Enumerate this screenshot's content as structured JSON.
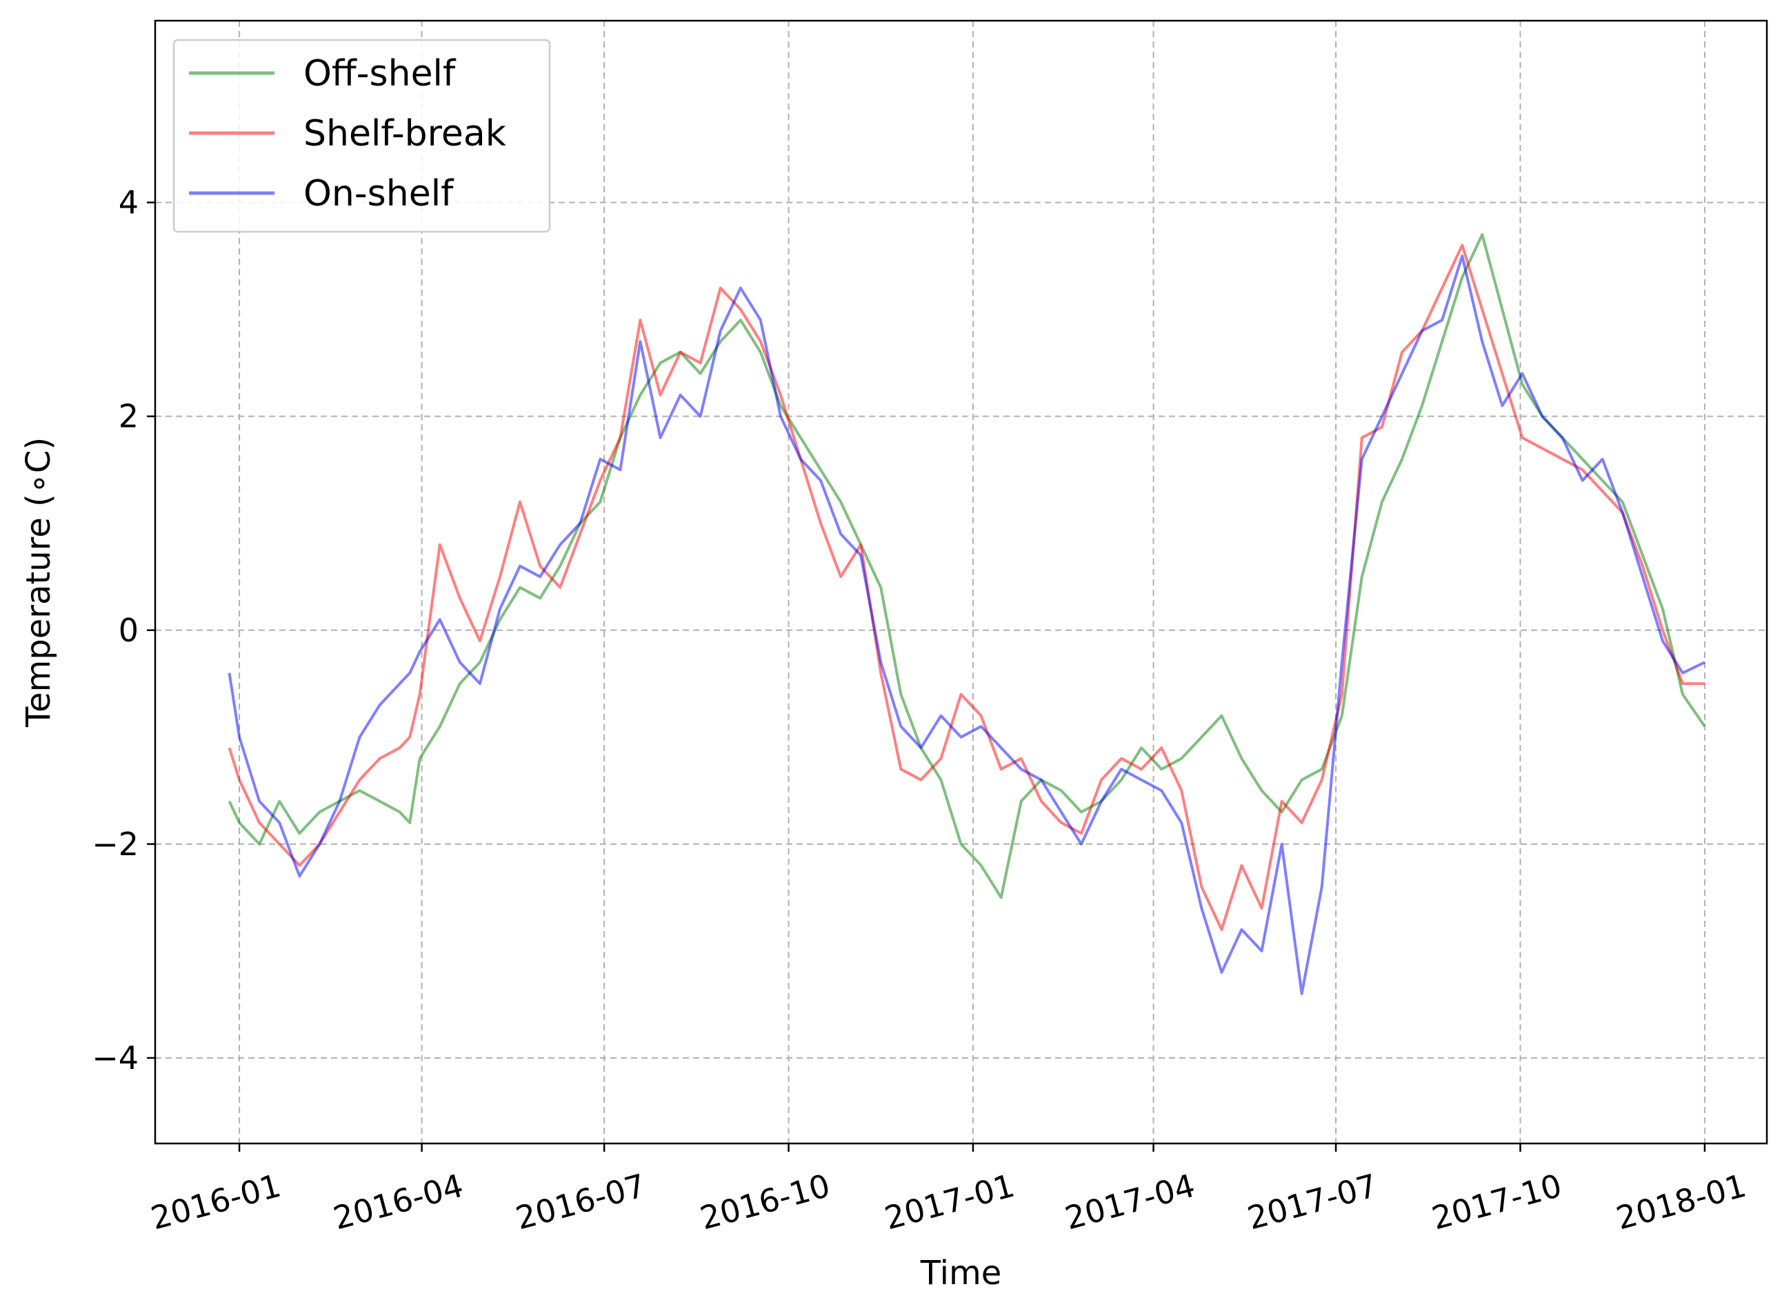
{
  "chart_data": {
    "type": "line",
    "title": "",
    "xlabel": "Time",
    "ylabel": "Temperature (∘C)",
    "x_tick_labels": [
      "2016-01",
      "2016-04",
      "2016-07",
      "2016-10",
      "2017-01",
      "2017-04",
      "2017-07",
      "2017-10",
      "2018-01"
    ],
    "x_tick_days": [
      0,
      91,
      182,
      274,
      366,
      456,
      547,
      639,
      731
    ],
    "y_ticks": [
      4,
      2,
      0,
      -2,
      -4
    ],
    "y_tick_labels": [
      "4",
      "2",
      "0",
      "−2",
      "−4"
    ],
    "xlim_days": [
      -42,
      762
    ],
    "ylim": [
      -4.8,
      5.7
    ],
    "x_unit": "days since 2016-01-01",
    "grid": true,
    "legend_position": "top-left",
    "series": [
      {
        "name": "Off-shelf",
        "color": "#008000",
        "x": [
          -5,
          0,
          10,
          20,
          30,
          40,
          50,
          60,
          70,
          80,
          85,
          90,
          100,
          110,
          120,
          130,
          140,
          150,
          160,
          170,
          180,
          190,
          200,
          210,
          220,
          230,
          240,
          250,
          260,
          270,
          280,
          290,
          300,
          310,
          320,
          330,
          340,
          350,
          360,
          370,
          380,
          390,
          400,
          410,
          420,
          430,
          440,
          450,
          460,
          470,
          480,
          490,
          500,
          510,
          520,
          530,
          540,
          550,
          560,
          570,
          580,
          590,
          600,
          610,
          620,
          630,
          640,
          650,
          660,
          670,
          680,
          690,
          700,
          710,
          720,
          731
        ],
        "y": [
          -1.6,
          -1.8,
          -2.0,
          -1.6,
          -1.9,
          -1.7,
          -1.6,
          -1.5,
          -1.6,
          -1.7,
          -1.8,
          -1.2,
          -0.9,
          -0.5,
          -0.3,
          0.1,
          0.4,
          0.3,
          0.6,
          1.0,
          1.2,
          1.8,
          2.2,
          2.5,
          2.6,
          2.4,
          2.7,
          2.9,
          2.6,
          2.1,
          1.8,
          1.5,
          1.2,
          0.8,
          0.4,
          -0.6,
          -1.1,
          -1.4,
          -2.0,
          -2.2,
          -2.5,
          -1.6,
          -1.4,
          -1.5,
          -1.7,
          -1.6,
          -1.4,
          -1.1,
          -1.3,
          -1.2,
          -1.0,
          -0.8,
          -1.2,
          -1.5,
          -1.7,
          -1.4,
          -1.3,
          -0.8,
          0.5,
          1.2,
          1.6,
          2.1,
          2.7,
          3.3,
          3.7,
          3.0,
          2.3,
          2.0,
          1.8,
          1.6,
          1.4,
          1.2,
          0.7,
          0.2,
          -0.6,
          -0.9
        ]
      },
      {
        "name": "Shelf-break",
        "color": "#ff0000",
        "x": [
          -5,
          0,
          10,
          20,
          30,
          40,
          50,
          60,
          70,
          80,
          85,
          90,
          100,
          110,
          120,
          130,
          140,
          150,
          160,
          170,
          180,
          190,
          200,
          210,
          220,
          230,
          240,
          250,
          260,
          270,
          280,
          290,
          300,
          310,
          320,
          330,
          340,
          350,
          360,
          370,
          380,
          390,
          400,
          410,
          420,
          430,
          440,
          450,
          460,
          470,
          480,
          490,
          500,
          510,
          520,
          530,
          540,
          550,
          560,
          570,
          580,
          590,
          600,
          610,
          620,
          630,
          640,
          650,
          660,
          670,
          680,
          690,
          700,
          710,
          720,
          731
        ],
        "y": [
          -1.1,
          -1.4,
          -1.8,
          -2.0,
          -2.2,
          -2.0,
          -1.7,
          -1.4,
          -1.2,
          -1.1,
          -1.0,
          -0.6,
          0.8,
          0.3,
          -0.1,
          0.5,
          1.2,
          0.6,
          0.4,
          0.9,
          1.4,
          1.8,
          2.9,
          2.2,
          2.6,
          2.5,
          3.2,
          3.0,
          2.7,
          2.2,
          1.6,
          1.0,
          0.5,
          0.8,
          -0.4,
          -1.3,
          -1.4,
          -1.2,
          -0.6,
          -0.8,
          -1.3,
          -1.2,
          -1.6,
          -1.8,
          -1.9,
          -1.4,
          -1.2,
          -1.3,
          -1.1,
          -1.5,
          -2.4,
          -2.8,
          -2.2,
          -2.6,
          -1.6,
          -1.8,
          -1.4,
          -0.6,
          1.8,
          1.9,
          2.6,
          2.8,
          3.2,
          3.6,
          3.0,
          2.4,
          1.8,
          1.7,
          1.6,
          1.5,
          1.3,
          1.1,
          0.6,
          0.0,
          -0.5,
          -0.5
        ]
      },
      {
        "name": "On-shelf",
        "color": "#0000ff",
        "x": [
          -5,
          0,
          10,
          20,
          30,
          40,
          50,
          60,
          70,
          80,
          85,
          90,
          100,
          110,
          120,
          130,
          140,
          150,
          160,
          170,
          180,
          190,
          200,
          210,
          220,
          230,
          240,
          250,
          260,
          270,
          280,
          290,
          300,
          310,
          320,
          330,
          340,
          350,
          360,
          370,
          380,
          390,
          400,
          410,
          420,
          430,
          440,
          450,
          460,
          470,
          480,
          490,
          500,
          510,
          520,
          530,
          540,
          550,
          560,
          570,
          580,
          590,
          600,
          610,
          620,
          630,
          640,
          650,
          660,
          670,
          680,
          690,
          700,
          710,
          720,
          731
        ],
        "y": [
          -0.4,
          -1.0,
          -1.6,
          -1.8,
          -2.3,
          -2.0,
          -1.6,
          -1.0,
          -0.7,
          -0.5,
          -0.4,
          -0.2,
          0.1,
          -0.3,
          -0.5,
          0.2,
          0.6,
          0.5,
          0.8,
          1.0,
          1.6,
          1.5,
          2.7,
          1.8,
          2.2,
          2.0,
          2.8,
          3.2,
          2.9,
          2.0,
          1.6,
          1.4,
          0.9,
          0.7,
          -0.3,
          -0.9,
          -1.1,
          -0.8,
          -1.0,
          -0.9,
          -1.1,
          -1.3,
          -1.4,
          -1.7,
          -2.0,
          -1.6,
          -1.3,
          -1.4,
          -1.5,
          -1.8,
          -2.6,
          -3.2,
          -2.8,
          -3.0,
          -2.0,
          -3.4,
          -2.4,
          -0.3,
          1.6,
          2.0,
          2.4,
          2.8,
          2.9,
          3.5,
          2.7,
          2.1,
          2.4,
          2.0,
          1.8,
          1.4,
          1.6,
          1.1,
          0.5,
          -0.1,
          -0.4,
          -0.3
        ]
      }
    ]
  }
}
